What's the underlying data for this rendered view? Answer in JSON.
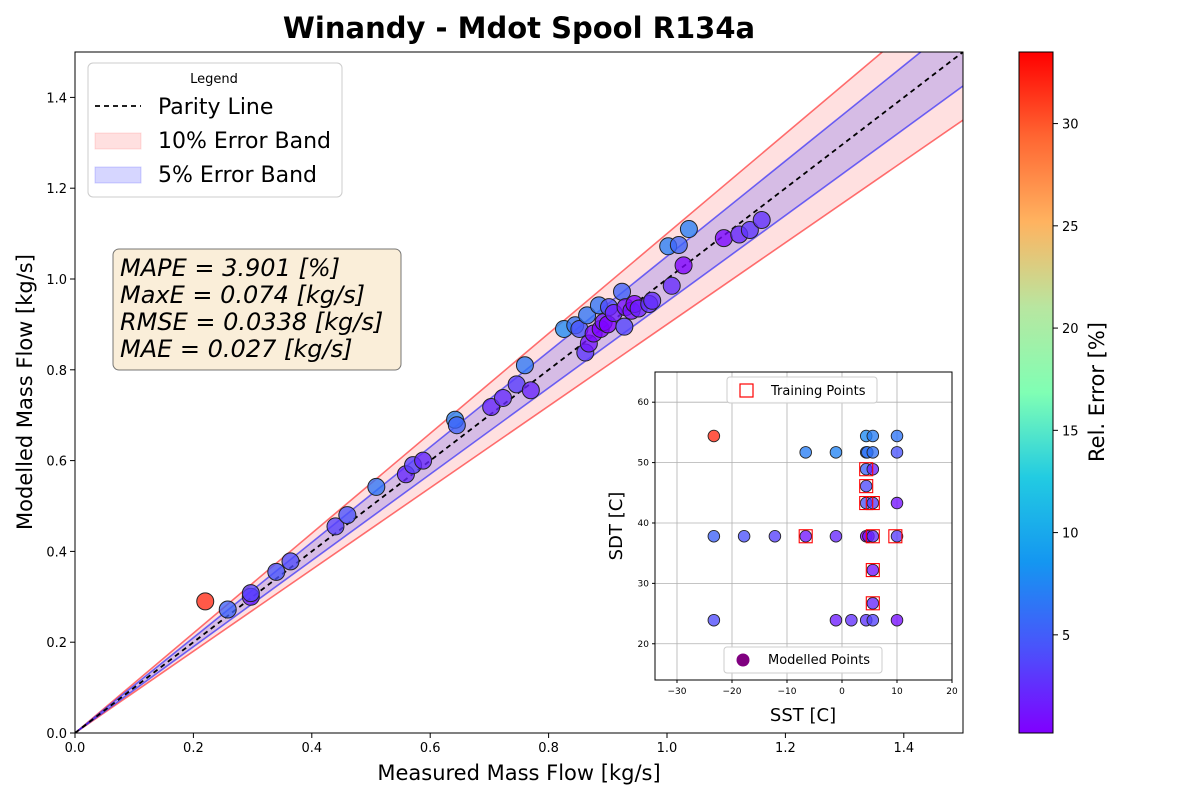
{
  "chart_data": [
    {
      "type": "scatter",
      "title": "Winandy - Mdot Spool R134a",
      "xlabel": "Measured Mass Flow [kg/s]",
      "ylabel": "Modelled Mass Flow [kg/s]",
      "xlim": [
        0,
        1.5
      ],
      "ylim": [
        0,
        1.5
      ],
      "xticks": [
        "0.0",
        "0.2",
        "0.4",
        "0.6",
        "0.8",
        "1.0",
        "1.2",
        "1.4"
      ],
      "yticks": [
        "0.0",
        "0.2",
        "0.4",
        "0.6",
        "0.8",
        "1.0",
        "1.2",
        "1.4"
      ],
      "grid": false,
      "legend": {
        "title": "Legend",
        "position": "top-left",
        "entries": [
          "Parity Line",
          "10% Error Band",
          "5% Error Band"
        ]
      },
      "annotations": [
        "MAPE = 3.901 [%]",
        "MaxE = 0.074 [kg/s]",
        "RMSE = 0.0338 [kg/s]",
        "MAE = 0.027 [kg/s]"
      ],
      "parity_line": [
        [
          0,
          0
        ],
        [
          1.5,
          1.5
        ]
      ],
      "error_bands": [
        {
          "name": "10% Error Band",
          "fraction": 0.1,
          "color": "#ff0000"
        },
        {
          "name": "5% Error Band",
          "fraction": 0.05,
          "color": "#0000ff"
        }
      ],
      "points": [
        {
          "x": 0.22,
          "y": 0.29,
          "err": 31.8
        },
        {
          "x": 0.258,
          "y": 0.272,
          "err": 5.4
        },
        {
          "x": 0.297,
          "y": 0.3,
          "err": 1.5
        },
        {
          "x": 0.297,
          "y": 0.308,
          "err": 3.5
        },
        {
          "x": 0.34,
          "y": 0.355,
          "err": 4.5
        },
        {
          "x": 0.364,
          "y": 0.378,
          "err": 4.0
        },
        {
          "x": 0.44,
          "y": 0.455,
          "err": 3.4
        },
        {
          "x": 0.46,
          "y": 0.48,
          "err": 4.3
        },
        {
          "x": 0.509,
          "y": 0.542,
          "err": 6.5
        },
        {
          "x": 0.559,
          "y": 0.57,
          "err": 2.2
        },
        {
          "x": 0.571,
          "y": 0.59,
          "err": 3.3
        },
        {
          "x": 0.588,
          "y": 0.6,
          "err": 2.1
        },
        {
          "x": 0.642,
          "y": 0.69,
          "err": 7.4
        },
        {
          "x": 0.645,
          "y": 0.678,
          "err": 5.3
        },
        {
          "x": 0.703,
          "y": 0.718,
          "err": 2.1
        },
        {
          "x": 0.723,
          "y": 0.738,
          "err": 2.3
        },
        {
          "x": 0.746,
          "y": 0.768,
          "err": 3.2
        },
        {
          "x": 0.76,
          "y": 0.81,
          "err": 6.6
        },
        {
          "x": 0.77,
          "y": 0.755,
          "err": 2.0
        },
        {
          "x": 0.826,
          "y": 0.89,
          "err": 7.8
        },
        {
          "x": 0.845,
          "y": 0.898,
          "err": 6.3
        },
        {
          "x": 0.852,
          "y": 0.89,
          "err": 4.4
        },
        {
          "x": 0.862,
          "y": 0.838,
          "err": 2.8
        },
        {
          "x": 0.865,
          "y": 0.92,
          "err": 6.4
        },
        {
          "x": 0.868,
          "y": 0.858,
          "err": 1.2
        },
        {
          "x": 0.876,
          "y": 0.88,
          "err": 0.5
        },
        {
          "x": 0.885,
          "y": 0.942,
          "err": 6.4
        },
        {
          "x": 0.888,
          "y": 0.89,
          "err": 0.4
        },
        {
          "x": 0.893,
          "y": 0.905,
          "err": 1.3
        },
        {
          "x": 0.9,
          "y": 0.9,
          "err": 0.2
        },
        {
          "x": 0.902,
          "y": 0.938,
          "err": 4.0
        },
        {
          "x": 0.91,
          "y": 0.925,
          "err": 1.6
        },
        {
          "x": 0.924,
          "y": 0.972,
          "err": 5.2
        },
        {
          "x": 0.928,
          "y": 0.895,
          "err": 3.6
        },
        {
          "x": 0.93,
          "y": 0.938,
          "err": 0.9
        },
        {
          "x": 0.94,
          "y": 0.93,
          "err": 1.1
        },
        {
          "x": 0.945,
          "y": 0.945,
          "err": 0.2
        },
        {
          "x": 0.952,
          "y": 0.935,
          "err": 1.8
        },
        {
          "x": 0.97,
          "y": 0.945,
          "err": 2.6
        },
        {
          "x": 0.975,
          "y": 0.952,
          "err": 2.4
        },
        {
          "x": 1.002,
          "y": 1.072,
          "err": 7.0
        },
        {
          "x": 1.008,
          "y": 0.985,
          "err": 2.3
        },
        {
          "x": 1.02,
          "y": 1.075,
          "err": 5.4
        },
        {
          "x": 1.028,
          "y": 1.03,
          "err": 0.2
        },
        {
          "x": 1.037,
          "y": 1.11,
          "err": 7.0
        },
        {
          "x": 1.096,
          "y": 1.09,
          "err": 0.5
        },
        {
          "x": 1.122,
          "y": 1.098,
          "err": 2.1
        },
        {
          "x": 1.14,
          "y": 1.108,
          "err": 2.8
        },
        {
          "x": 1.16,
          "y": 1.13,
          "err": 2.6
        }
      ]
    },
    {
      "type": "scatter",
      "title": "",
      "xlabel": "SST [C]",
      "ylabel": "SDT [C]",
      "xlim": [
        -34,
        20
      ],
      "ylim": [
        14,
        65
      ],
      "xticks": [
        "−30",
        "−20",
        "−10",
        "0",
        "10",
        "20"
      ],
      "yticks": [
        "20",
        "30",
        "40",
        "50",
        "60"
      ],
      "grid": true,
      "legend": [
        {
          "label": "Training Points",
          "marker": "square-open",
          "color": "#ff0000",
          "position": "top"
        },
        {
          "label": "Modelled Points",
          "marker": "circle",
          "color": "#800080",
          "position": "bottom"
        }
      ],
      "training_points": [
        [
          -6.6,
          37.8
        ],
        [
          4.4,
          48.9
        ],
        [
          4.4,
          46.1
        ],
        [
          4.4,
          43.3
        ],
        [
          5.6,
          43.3
        ],
        [
          5.6,
          37.8
        ],
        [
          9.7,
          37.8
        ],
        [
          5.6,
          32.2
        ],
        [
          5.6,
          26.7
        ]
      ],
      "modelled_points": [
        {
          "x": -23.3,
          "y": 54.4,
          "err": 31.8
        },
        {
          "x": -6.6,
          "y": 51.7,
          "err": 7.0
        },
        {
          "x": -1.1,
          "y": 51.7,
          "err": 7.4
        },
        {
          "x": 4.4,
          "y": 54.4,
          "err": 7.8
        },
        {
          "x": 5.6,
          "y": 54.4,
          "err": 7.0
        },
        {
          "x": 10.0,
          "y": 54.4,
          "err": 6.5
        },
        {
          "x": 4.4,
          "y": 51.7,
          "err": 6.4
        },
        {
          "x": 4.6,
          "y": 51.7,
          "err": 6.4
        },
        {
          "x": 5.6,
          "y": 51.7,
          "err": 6.3
        },
        {
          "x": 10.0,
          "y": 51.7,
          "err": 4.4
        },
        {
          "x": 4.4,
          "y": 48.9,
          "err": 5.4
        },
        {
          "x": 5.6,
          "y": 48.9,
          "err": 2.0
        },
        {
          "x": 4.4,
          "y": 46.1,
          "err": 4.0
        },
        {
          "x": 4.4,
          "y": 43.3,
          "err": 4.5
        },
        {
          "x": 5.6,
          "y": 43.3,
          "err": 3.2
        },
        {
          "x": 10.0,
          "y": 43.3,
          "err": 1.1
        },
        {
          "x": -23.3,
          "y": 37.8,
          "err": 5.3
        },
        {
          "x": -17.8,
          "y": 37.8,
          "err": 4.3
        },
        {
          "x": -12.2,
          "y": 37.8,
          "err": 3.4
        },
        {
          "x": -6.6,
          "y": 37.8,
          "err": 1.3
        },
        {
          "x": -1.1,
          "y": 37.8,
          "err": 2.1
        },
        {
          "x": 4.4,
          "y": 37.8,
          "err": 0.2
        },
        {
          "x": 4.8,
          "y": 37.8,
          "err": 0.5
        },
        {
          "x": 5.6,
          "y": 37.8,
          "err": 2.3
        },
        {
          "x": 10.0,
          "y": 37.8,
          "err": 3.3
        },
        {
          "x": 5.6,
          "y": 32.2,
          "err": 1.2
        },
        {
          "x": 5.6,
          "y": 26.7,
          "err": 2.1
        },
        {
          "x": -23.3,
          "y": 23.9,
          "err": 4.0
        },
        {
          "x": -1.1,
          "y": 23.9,
          "err": 1.6
        },
        {
          "x": 1.7,
          "y": 23.9,
          "err": 2.6
        },
        {
          "x": 4.4,
          "y": 23.9,
          "err": 2.8
        },
        {
          "x": 5.6,
          "y": 23.9,
          "err": 3.6
        },
        {
          "x": 10.0,
          "y": 23.9,
          "err": 0.9
        }
      ]
    },
    {
      "type": "colorbar",
      "label": "Rel. Error [%]",
      "colormap": "rainbow",
      "range": [
        0.2,
        33.5
      ],
      "ticks": [
        "5",
        "10",
        "15",
        "20",
        "25",
        "30"
      ]
    }
  ]
}
